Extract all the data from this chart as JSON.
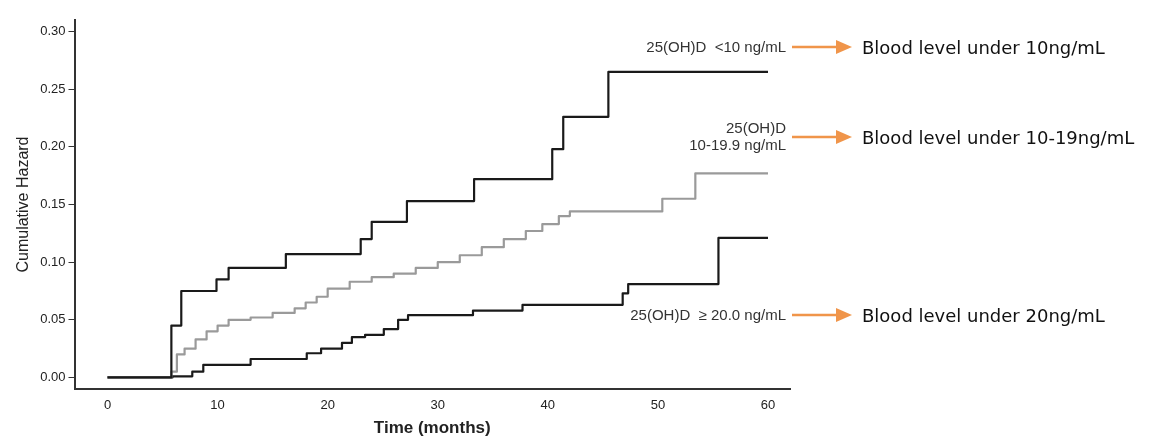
{
  "chart_data": {
    "type": "step",
    "xlabel": "Time (months)",
    "ylabel": "Cumulative Hazard",
    "xlim": [
      -3,
      62
    ],
    "ylim": [
      -0.01,
      0.31
    ],
    "xticks": [
      0,
      10,
      20,
      30,
      40,
      50,
      60
    ],
    "yticks": [
      {
        "value": 0,
        "label": "0.00"
      },
      {
        "value": 0.05,
        "label": "0.05"
      },
      {
        "value": 0.1,
        "label": "0.10"
      },
      {
        "value": 0.15,
        "label": "0.15"
      },
      {
        "value": 0.2,
        "label": "0.20"
      },
      {
        "value": 0.25,
        "label": "0.25"
      },
      {
        "value": 0.3,
        "label": "0.30"
      }
    ],
    "grid": false,
    "legend": false,
    "series": [
      {
        "name": "25(OH)D  <10 ng/mL",
        "color": "#1a1a1a",
        "x": [
          0,
          5.8,
          6.7,
          9.9,
          11,
          16.2,
          23,
          24,
          27.2,
          33.3,
          40.4,
          41.4,
          45.5,
          60
        ],
        "values": [
          0,
          0.045,
          0.075,
          0.085,
          0.095,
          0.107,
          0.12,
          0.135,
          0.153,
          0.172,
          0.198,
          0.226,
          0.265,
          0.265
        ]
      },
      {
        "name": "25(OH)D\n10-19.9 ng/mL",
        "color": "#9a9a9a",
        "x": [
          0,
          5.8,
          6.3,
          7,
          8,
          9,
          10,
          11,
          13,
          15,
          17,
          18,
          19,
          20,
          22,
          24,
          26,
          28,
          30,
          32,
          34,
          36,
          38,
          39.5,
          41,
          42,
          50.4,
          53.4,
          60
        ],
        "values": [
          0,
          0.005,
          0.02,
          0.025,
          0.033,
          0.04,
          0.045,
          0.05,
          0.052,
          0.056,
          0.06,
          0.065,
          0.07,
          0.077,
          0.083,
          0.087,
          0.09,
          0.095,
          0.1,
          0.106,
          0.113,
          0.12,
          0.127,
          0.133,
          0.14,
          0.144,
          0.155,
          0.177,
          0.177
        ]
      },
      {
        "name": "25(OH)D  ≥ 20.0 ng/mL",
        "color": "#1a1a1a",
        "x": [
          0,
          5.9,
          7.7,
          8.7,
          13,
          18.1,
          19.4,
          21.3,
          22.2,
          23.4,
          25.1,
          26.4,
          27.3,
          33.2,
          37.7,
          46.8,
          47.3,
          55.5,
          60
        ],
        "values": [
          0,
          0.001,
          0.005,
          0.011,
          0.016,
          0.021,
          0.025,
          0.03,
          0.035,
          0.037,
          0.042,
          0.05,
          0.054,
          0.058,
          0.063,
          0.073,
          0.081,
          0.121,
          0.121
        ]
      }
    ],
    "annotations": [
      "Blood level under 10ng/mL",
      "Blood level under 10-19ng/mL",
      "Blood level under 20ng/mL"
    ]
  }
}
